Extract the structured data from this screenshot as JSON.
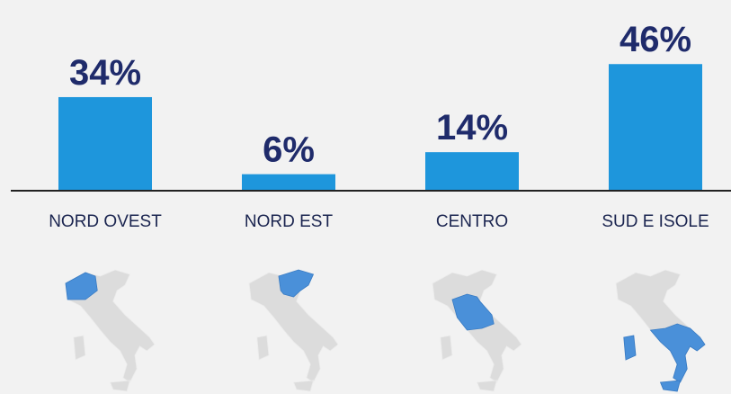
{
  "chart_data": {
    "type": "bar",
    "categories": [
      "NORD OVEST",
      "NORD EST",
      "CENTRO",
      "SUD E ISOLE"
    ],
    "values": [
      34,
      6,
      14,
      46
    ],
    "value_labels": [
      "34%",
      "6%",
      "14%",
      "46%"
    ],
    "color": "#1e96dc"
  }
}
